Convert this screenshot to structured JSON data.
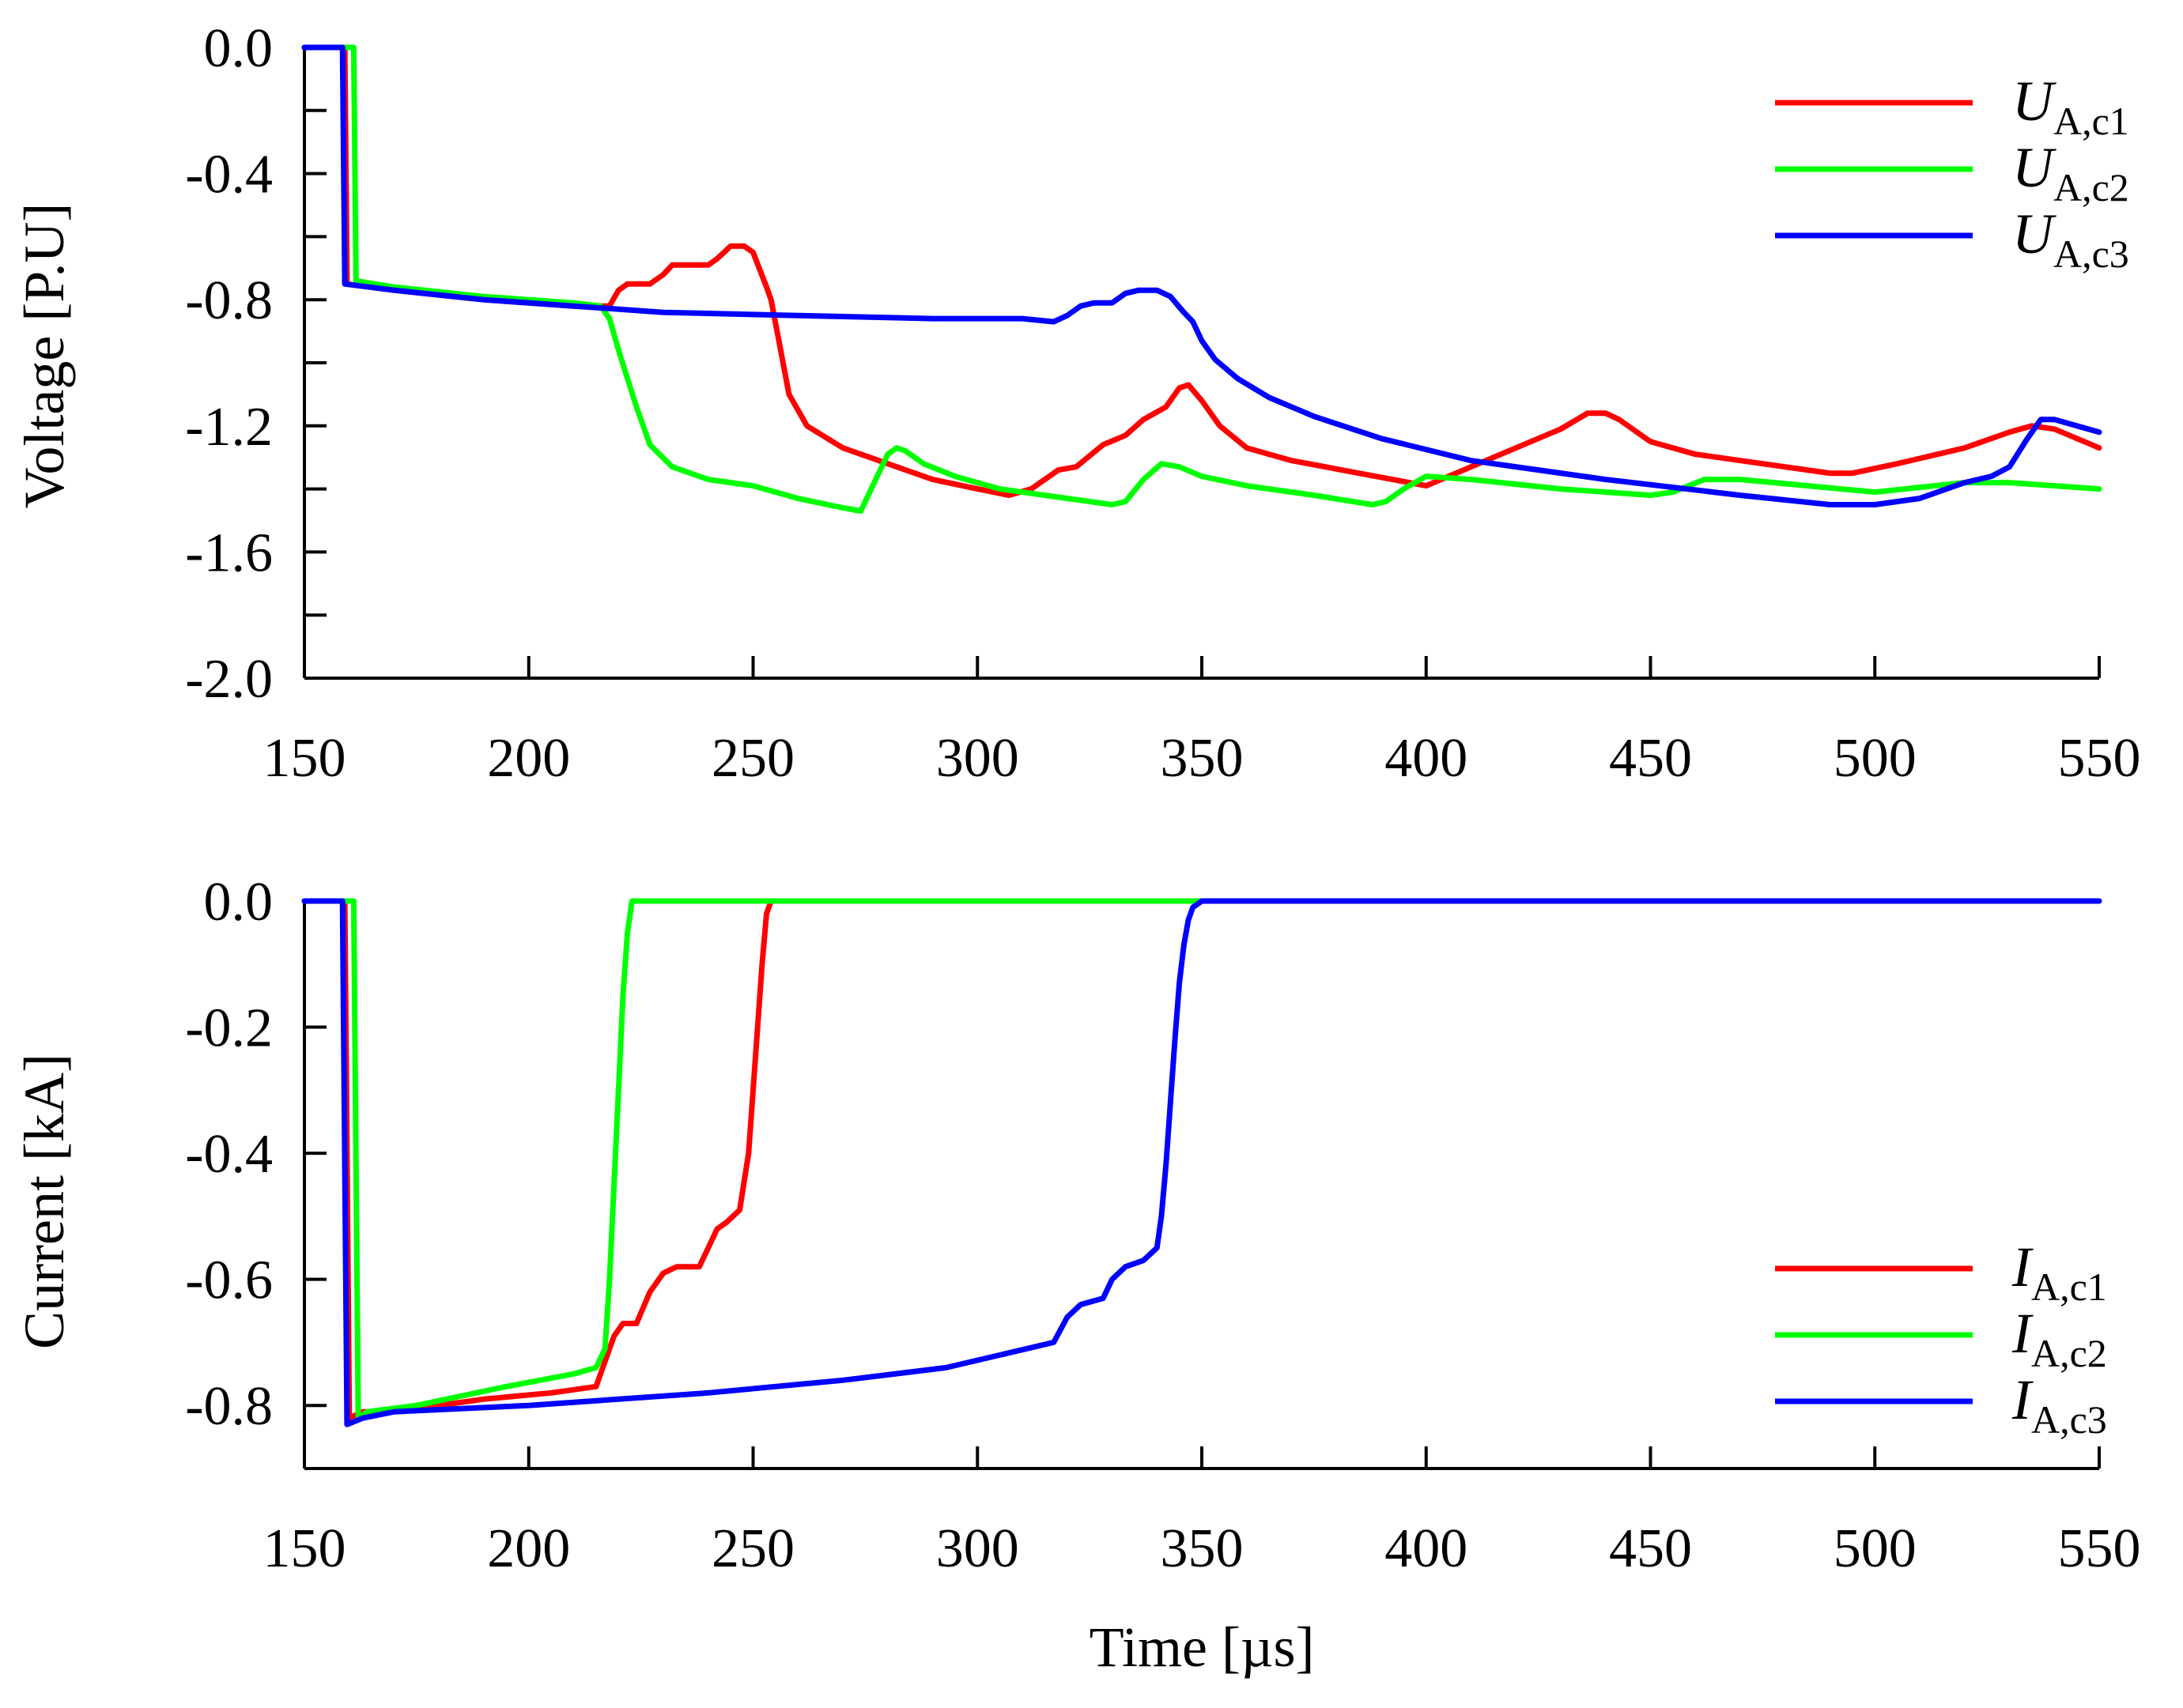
{
  "chart_data": [
    {
      "type": "line",
      "ylabel": "Voltage [P.U]",
      "xlabel": "",
      "xlim": [
        150,
        550
      ],
      "ylim": [
        -2.0,
        0.0
      ],
      "xticks": [
        150,
        200,
        250,
        300,
        350,
        400,
        450,
        500,
        550
      ],
      "xtick_labels": [
        "150",
        "200",
        "250",
        "300",
        "350",
        "400",
        "450",
        "500",
        "550"
      ],
      "yticks": [
        0.0,
        -0.4,
        -0.8,
        -1.2,
        -1.6,
        -2.0
      ],
      "ytick_labels": [
        "0.0",
        "-0.4",
        "-0.8",
        "-1.2",
        "-1.6",
        "-2.0"
      ],
      "legend_position": "top-right",
      "series": [
        {
          "name": "U A,c1",
          "symbol": "U",
          "subscript": "A,c1",
          "color": "#ff0000",
          "x": [
            150,
            159,
            159.5,
            170,
            190,
            210,
            218,
            220,
            222,
            227,
            230,
            232,
            236,
            240,
            242,
            245,
            248,
            250,
            253,
            254,
            256,
            258,
            262,
            270,
            280,
            290,
            300,
            307,
            312,
            318,
            322,
            328,
            333,
            337,
            342,
            345,
            347,
            350,
            354,
            360,
            370,
            385,
            400,
            410,
            420,
            430,
            436,
            440,
            443,
            450,
            460,
            475,
            490,
            495,
            505,
            520,
            530,
            535,
            540,
            550
          ],
          "y": [
            0,
            0,
            -0.75,
            -0.77,
            -0.8,
            -0.82,
            -0.82,
            -0.77,
            -0.75,
            -0.75,
            -0.72,
            -0.69,
            -0.69,
            -0.69,
            -0.67,
            -0.63,
            -0.63,
            -0.65,
            -0.76,
            -0.8,
            -0.95,
            -1.1,
            -1.2,
            -1.27,
            -1.32,
            -1.37,
            -1.4,
            -1.42,
            -1.4,
            -1.34,
            -1.33,
            -1.26,
            -1.23,
            -1.18,
            -1.14,
            -1.08,
            -1.07,
            -1.12,
            -1.2,
            -1.27,
            -1.31,
            -1.35,
            -1.39,
            -1.33,
            -1.27,
            -1.21,
            -1.16,
            -1.16,
            -1.18,
            -1.25,
            -1.29,
            -1.32,
            -1.35,
            -1.35,
            -1.32,
            -1.27,
            -1.22,
            -1.2,
            -1.21,
            -1.27
          ]
        },
        {
          "name": "U A,c2",
          "symbol": "U",
          "subscript": "A,c2",
          "color": "#00ff00",
          "x": [
            150,
            161,
            161.5,
            170,
            190,
            210,
            216,
            218,
            220,
            222,
            224,
            227,
            232,
            240,
            250,
            260,
            270,
            274,
            277,
            280,
            282,
            284,
            288,
            295,
            305,
            320,
            330,
            333,
            337,
            341,
            345,
            350,
            360,
            375,
            388,
            391,
            395,
            400,
            410,
            430,
            450,
            455,
            462,
            470,
            500,
            520,
            530,
            550
          ],
          "y": [
            0,
            0,
            -0.74,
            -0.76,
            -0.79,
            -0.81,
            -0.82,
            -0.86,
            -0.96,
            -1.05,
            -1.14,
            -1.26,
            -1.33,
            -1.37,
            -1.39,
            -1.43,
            -1.46,
            -1.47,
            -1.38,
            -1.29,
            -1.27,
            -1.28,
            -1.32,
            -1.36,
            -1.4,
            -1.43,
            -1.45,
            -1.44,
            -1.37,
            -1.32,
            -1.33,
            -1.36,
            -1.39,
            -1.42,
            -1.45,
            -1.44,
            -1.4,
            -1.36,
            -1.37,
            -1.4,
            -1.42,
            -1.41,
            -1.37,
            -1.37,
            -1.41,
            -1.38,
            -1.38,
            -1.4
          ]
        },
        {
          "name": "U A,c3",
          "symbol": "U",
          "subscript": "A,c3",
          "color": "#0000ff",
          "x": [
            150,
            158.5,
            159,
            170,
            190,
            210,
            230,
            260,
            290,
            310,
            317,
            320,
            323,
            326,
            330,
            333,
            336,
            340,
            343,
            346,
            348,
            350,
            353,
            358,
            365,
            375,
            390,
            410,
            440,
            470,
            490,
            500,
            510,
            520,
            526,
            530,
            534,
            537,
            540,
            545,
            550
          ],
          "y": [
            0,
            0,
            -0.75,
            -0.77,
            -0.8,
            -0.82,
            -0.84,
            -0.85,
            -0.86,
            -0.86,
            -0.87,
            -0.85,
            -0.82,
            -0.81,
            -0.81,
            -0.78,
            -0.77,
            -0.77,
            -0.79,
            -0.84,
            -0.87,
            -0.93,
            -0.99,
            -1.05,
            -1.11,
            -1.17,
            -1.24,
            -1.31,
            -1.37,
            -1.42,
            -1.45,
            -1.45,
            -1.43,
            -1.38,
            -1.36,
            -1.33,
            -1.24,
            -1.18,
            -1.18,
            -1.2,
            -1.22
          ]
        }
      ]
    },
    {
      "type": "line",
      "ylabel": "Current [kA]",
      "xlabel": "Time  [µs]",
      "xlim": [
        150,
        550
      ],
      "ylim": [
        -0.9,
        0.0
      ],
      "xticks": [
        150,
        200,
        250,
        300,
        350,
        400,
        450,
        500,
        550
      ],
      "xtick_labels": [
        "150",
        "200",
        "250",
        "300",
        "350",
        "400",
        "450",
        "500",
        "550"
      ],
      "yticks": [
        0.0,
        -0.2,
        -0.4,
        -0.6,
        -0.8
      ],
      "ytick_labels": [
        "0.0",
        "-0.2",
        "-0.4",
        "-0.6",
        "-0.8"
      ],
      "legend_position": "bottom-right",
      "series": [
        {
          "name": "I A,c1",
          "symbol": "I",
          "subscript": "A,c1",
          "color": "#ff0000",
          "x": [
            150,
            159,
            160,
            163,
            170,
            190,
            205,
            215,
            217,
            219,
            221,
            224,
            227,
            230,
            233,
            236,
            238,
            240,
            242,
            244,
            247,
            249,
            250,
            251,
            252,
            253,
            254
          ],
          "y": [
            0,
            0,
            -0.82,
            -0.81,
            -0.81,
            -0.79,
            -0.78,
            -0.77,
            -0.73,
            -0.69,
            -0.67,
            -0.67,
            -0.62,
            -0.59,
            -0.58,
            -0.58,
            -0.58,
            -0.55,
            -0.52,
            -0.51,
            -0.49,
            -0.4,
            -0.3,
            -0.2,
            -0.1,
            -0.02,
            0
          ]
        },
        {
          "name": "I A,c2",
          "symbol": "I",
          "subscript": "A,c2",
          "color": "#00ff00",
          "x": [
            150,
            161,
            162,
            164,
            175,
            195,
            210,
            215,
            217,
            218,
            219,
            220,
            221,
            222,
            223,
            224,
            550
          ],
          "y": [
            0,
            0,
            -0.82,
            -0.81,
            -0.8,
            -0.77,
            -0.75,
            -0.74,
            -0.71,
            -0.6,
            -0.45,
            -0.3,
            -0.15,
            -0.05,
            0,
            0,
            0
          ]
        },
        {
          "name": "I A,c3",
          "symbol": "I",
          "subscript": "A,c3",
          "color": "#0000ff",
          "x": [
            150,
            158.5,
            159.5,
            163,
            170,
            200,
            240,
            270,
            293,
            305,
            317,
            320,
            323,
            328,
            330,
            333,
            337,
            340,
            341,
            342,
            343,
            344,
            345,
            346,
            347,
            348,
            350,
            550
          ],
          "y": [
            0,
            0,
            -0.83,
            -0.82,
            -0.81,
            -0.8,
            -0.78,
            -0.76,
            -0.74,
            -0.72,
            -0.7,
            -0.66,
            -0.64,
            -0.63,
            -0.6,
            -0.58,
            -0.57,
            -0.55,
            -0.5,
            -0.42,
            -0.32,
            -0.22,
            -0.13,
            -0.07,
            -0.03,
            -0.01,
            0,
            0
          ]
        }
      ]
    }
  ]
}
